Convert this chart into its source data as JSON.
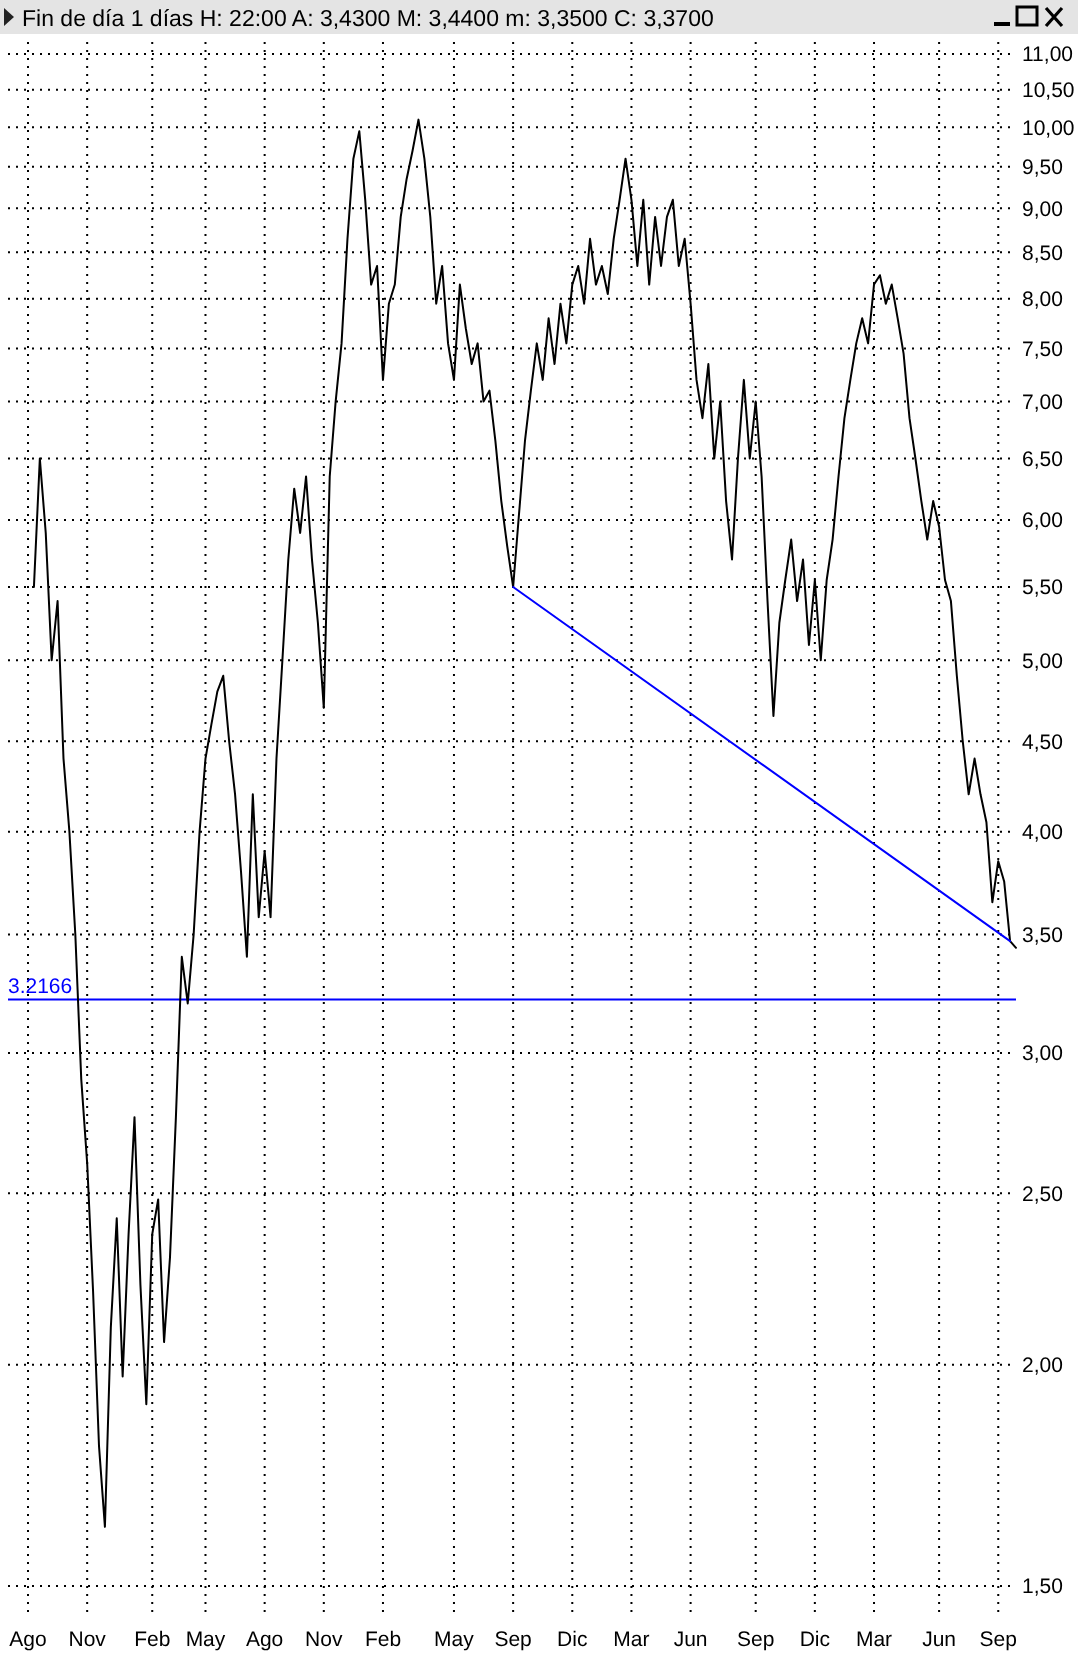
{
  "chart_data": {
    "type": "line",
    "title": "Fin de día 1 días  H: 22:00  A: 3,4300  M: 3,4400  m: 3,3500  C: 3,3700",
    "log": "y",
    "grid": true,
    "marker": "none",
    "line_style": "solid",
    "categories": [
      "Ago",
      null,
      null,
      null,
      null,
      null,
      null,
      null,
      null,
      null,
      "Nov",
      null,
      null,
      null,
      null,
      null,
      null,
      null,
      null,
      null,
      null,
      "Feb",
      null,
      null,
      null,
      null,
      null,
      null,
      null,
      null,
      "May",
      null,
      null,
      null,
      null,
      null,
      null,
      null,
      null,
      null,
      "Ago",
      null,
      null,
      null,
      null,
      null,
      null,
      null,
      null,
      null,
      "Nov",
      null,
      null,
      null,
      null,
      null,
      null,
      null,
      null,
      null,
      "Feb",
      null,
      null,
      null,
      null,
      null,
      null,
      null,
      null,
      null,
      null,
      null,
      "May",
      null,
      null,
      null,
      null,
      null,
      null,
      null,
      null,
      null,
      "Sep",
      null,
      null,
      null,
      null,
      null,
      null,
      null,
      null,
      null,
      "Dic",
      null,
      null,
      null,
      null,
      null,
      null,
      null,
      null,
      null,
      "Mar",
      null,
      null,
      null,
      null,
      null,
      null,
      null,
      null,
      null,
      "Jun",
      null,
      null,
      null,
      null,
      null,
      null,
      null,
      null,
      null,
      null,
      "Sep",
      null,
      null,
      null,
      null,
      null,
      null,
      null,
      null,
      null,
      "Dic",
      null,
      null,
      null,
      null,
      null,
      null,
      null,
      null,
      null,
      "Mar",
      null,
      null,
      null,
      null,
      null,
      null,
      null,
      null,
      null,
      null,
      "Jun",
      null,
      null,
      null,
      null,
      null,
      null,
      null,
      null,
      null,
      "Sep",
      null,
      null,
      null
    ],
    "ylim": [
      1.5,
      11
    ],
    "yticks": [
      {
        "value": 1.5,
        "label": "1,50"
      },
      {
        "value": 2,
        "label": "2,00"
      },
      {
        "value": 2.5,
        "label": "2,50"
      },
      {
        "value": 3,
        "label": "3,00"
      },
      {
        "value": 3.5,
        "label": "3,50"
      },
      {
        "value": 4,
        "label": "4,00"
      },
      {
        "value": 4.5,
        "label": "4,50"
      },
      {
        "value": 5,
        "label": "5,00"
      },
      {
        "value": 5.5,
        "label": "5,50"
      },
      {
        "value": 6,
        "label": "6,00"
      },
      {
        "value": 6.5,
        "label": "6,50"
      },
      {
        "value": 7,
        "label": "7,00"
      },
      {
        "value": 7.5,
        "label": "7,50"
      },
      {
        "value": 8,
        "label": "8,00"
      },
      {
        "value": 8.5,
        "label": "8,50"
      },
      {
        "value": 9,
        "label": "9,00"
      },
      {
        "value": 9.5,
        "label": "9,50"
      },
      {
        "value": 10,
        "label": "10,00"
      },
      {
        "value": 10.5,
        "label": "10,50"
      },
      {
        "value": 11,
        "label": "11,00"
      }
    ],
    "ref_lines": [
      {
        "axis": "y",
        "value": 3.2166,
        "label": "3.2166",
        "color": "#0000ff"
      }
    ],
    "series": [
      {
        "color": "#000000",
        "values": [
          null,
          5.5,
          6.5,
          5.9,
          5.0,
          5.4,
          4.4,
          4.0,
          3.5,
          2.9,
          2.6,
          2.2,
          1.8,
          1.62,
          2.1,
          2.42,
          1.97,
          2.37,
          2.76,
          2.22,
          1.9,
          2.37,
          2.48,
          2.06,
          2.3,
          2.76,
          3.4,
          3.2,
          3.5,
          4.0,
          4.4,
          4.6,
          4.8,
          4.9,
          4.5,
          4.2,
          3.8,
          3.4,
          4.2,
          3.58,
          3.9,
          3.58,
          4.4,
          5.0,
          5.7,
          6.25,
          5.9,
          6.35,
          5.7,
          5.25,
          4.7,
          6.35,
          7.0,
          7.55,
          8.65,
          9.6,
          9.95,
          9.1,
          8.15,
          8.35,
          7.2,
          7.95,
          8.15,
          8.9,
          9.35,
          9.7,
          10.1,
          9.6,
          8.9,
          7.95,
          8.35,
          7.55,
          7.2,
          8.15,
          7.7,
          7.35,
          7.55,
          7.0,
          7.1,
          6.65,
          6.15,
          5.8,
          5.5,
          6.05,
          6.65,
          7.1,
          7.55,
          7.2,
          7.8,
          7.35,
          7.95,
          7.55,
          8.15,
          8.35,
          7.95,
          8.65,
          8.15,
          8.35,
          8.05,
          8.65,
          9.1,
          9.6,
          9.1,
          8.35,
          9.1,
          8.15,
          8.9,
          8.35,
          8.9,
          9.1,
          8.35,
          8.65,
          7.95,
          7.2,
          6.85,
          7.35,
          6.5,
          7.0,
          6.15,
          5.7,
          6.5,
          7.2,
          6.5,
          7.0,
          6.35,
          5.4,
          4.65,
          5.25,
          5.55,
          5.85,
          5.4,
          5.7,
          5.1,
          5.55,
          5.0,
          5.55,
          5.85,
          6.35,
          6.85,
          7.2,
          7.55,
          7.8,
          7.55,
          8.15,
          8.25,
          7.95,
          8.15,
          7.8,
          7.45,
          6.85,
          6.5,
          6.15,
          5.85,
          6.15,
          5.95,
          5.55,
          5.4,
          4.9,
          4.5,
          4.2,
          4.4,
          4.2,
          4.05,
          3.65,
          3.85,
          3.75,
          3.47,
          3.44
        ]
      },
      {
        "type": "line",
        "color": "#0000ff",
        "values": [
          null,
          null,
          null,
          null,
          null,
          null,
          null,
          null,
          null,
          null,
          null,
          null,
          null,
          null,
          null,
          null,
          null,
          null,
          null,
          null,
          null,
          null,
          null,
          null,
          null,
          null,
          null,
          null,
          null,
          null,
          null,
          null,
          null,
          null,
          null,
          null,
          null,
          null,
          null,
          null,
          null,
          null,
          null,
          null,
          null,
          null,
          null,
          null,
          null,
          null,
          null,
          null,
          null,
          null,
          null,
          null,
          null,
          null,
          null,
          null,
          null,
          null,
          null,
          null,
          null,
          null,
          null,
          null,
          null,
          null,
          null,
          null,
          null,
          null,
          null,
          null,
          null,
          null,
          null,
          null,
          null,
          null,
          5.5,
          null,
          null,
          null,
          null,
          null,
          null,
          null,
          null,
          null,
          null,
          null,
          null,
          null,
          null,
          null,
          null,
          null,
          null,
          null,
          null,
          null,
          null,
          null,
          null,
          null,
          null,
          null,
          null,
          null,
          null,
          null,
          null,
          null,
          null,
          null,
          null,
          null,
          null,
          null,
          null,
          null,
          null,
          null,
          null,
          null,
          null,
          null,
          null,
          null,
          null,
          null,
          null,
          null,
          null,
          null,
          null,
          null,
          null,
          null,
          null,
          null,
          null,
          null,
          null,
          null,
          null,
          null,
          null,
          null,
          null,
          null,
          null,
          null,
          null,
          null,
          null,
          null,
          null,
          null,
          null,
          null,
          null,
          null,
          3.47,
          null
        ]
      }
    ]
  }
}
